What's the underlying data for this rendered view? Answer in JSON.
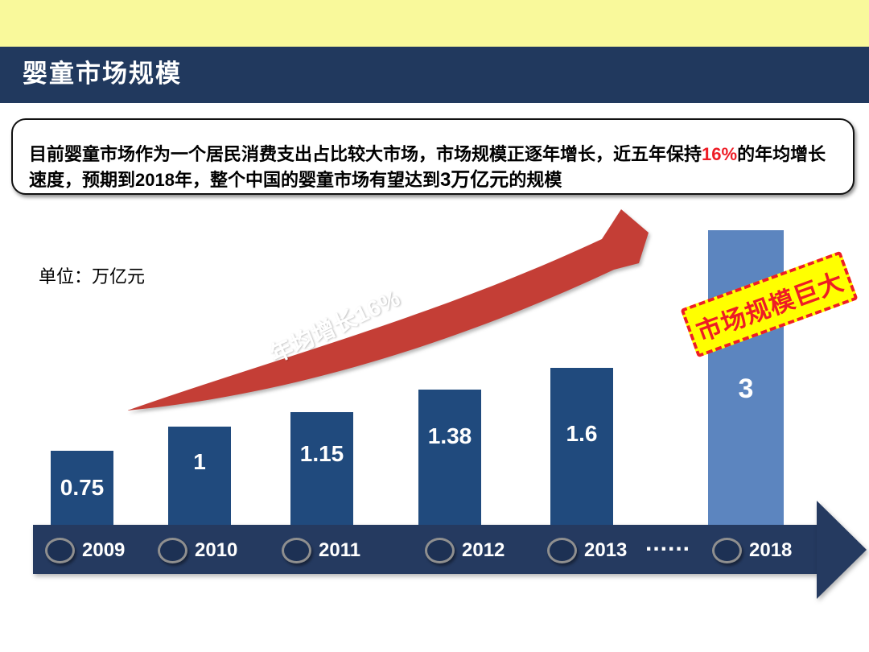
{
  "slide": {
    "title": "婴童市场规模",
    "unit_label": "单位：万亿元",
    "callout": {
      "text_before": "目前婴童市场作为一个居民消费支出占比较大市场，市场规模正逐年增长，近五年保持",
      "growth_rate": "16%",
      "text_middle": "的年均增长速度，预期到2018年，整个中国的婴童市场有望达到",
      "market_size": "3万亿元",
      "text_after": "的规模"
    },
    "growth_label": "年均增长16%",
    "badge_label": "市场规模巨大",
    "axis_ellipsis": "......"
  },
  "chart_data": {
    "type": "bar",
    "title": "婴童市场规模",
    "unit": "万亿元",
    "categories": [
      "2009",
      "2010",
      "2011",
      "2012",
      "2013",
      "2018"
    ],
    "values": [
      0.75,
      1,
      1.15,
      1.38,
      1.6,
      3
    ],
    "annotation": "年均增长16%",
    "badge": "市场规模巨大",
    "highlight_index": 5,
    "x_axis_gap_label": "......",
    "ylim": [
      0,
      3
    ],
    "grid": false,
    "legend": false,
    "colors": {
      "top_band": "#f9f99b",
      "header_bar": "#21395e",
      "bar": "#204a7d",
      "highlight_bar": "#5c85bf",
      "axis_band": "#253a60",
      "growth_arrow": "#c43e36",
      "badge_bg": "#ffff00",
      "badge_accent": "#ee1c25",
      "highlight_text": "#ee1c25"
    }
  }
}
